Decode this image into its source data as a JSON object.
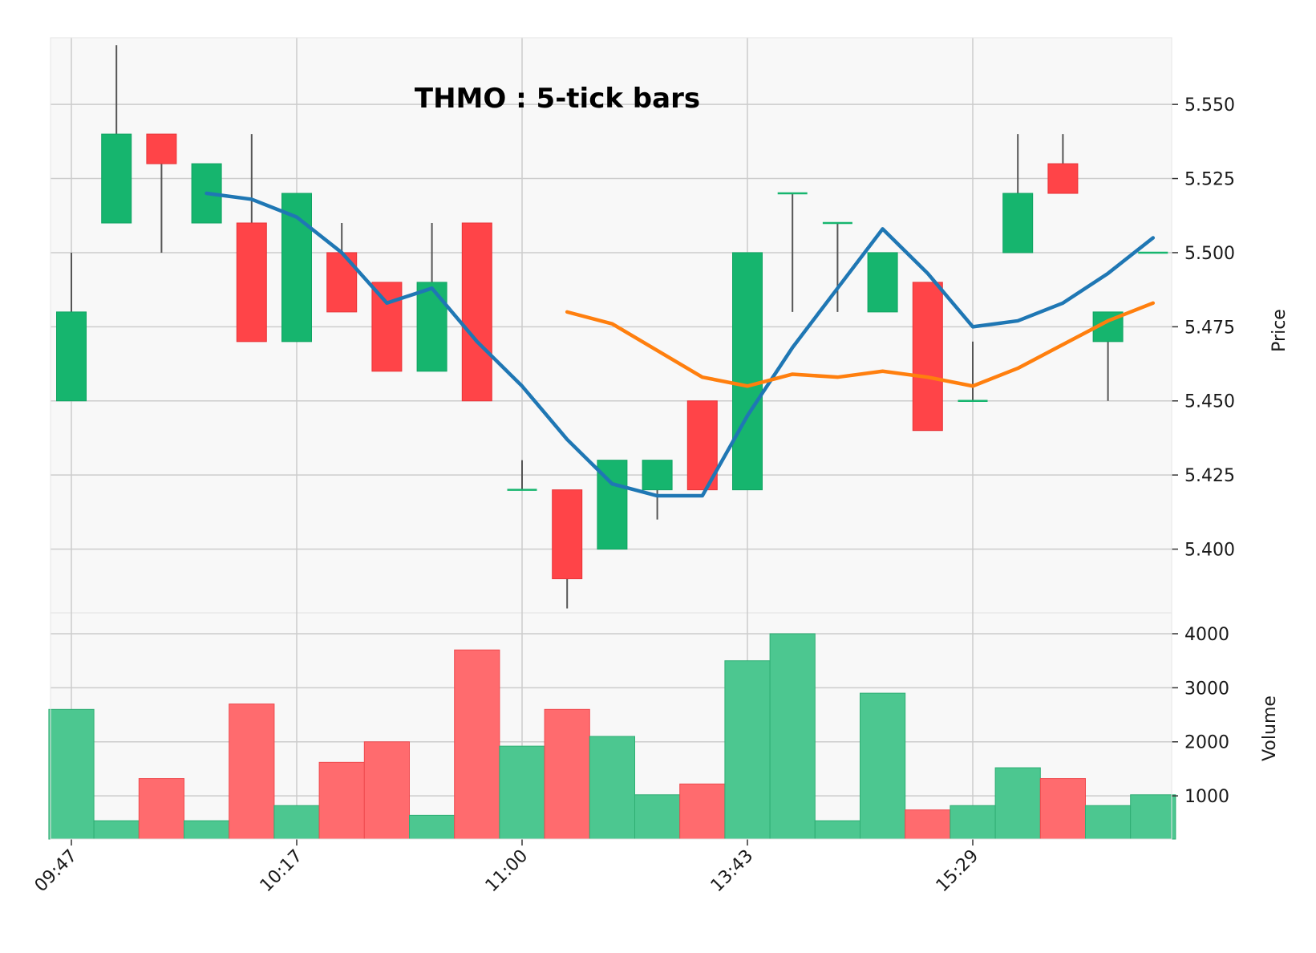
{
  "chart_data": {
    "type": "candlestick",
    "title": "THMO : 5-tick bars",
    "price_axis_label": "Price",
    "volume_axis_label": "Volume",
    "x_tick_labels": [
      {
        "index": 0,
        "label": "09:47"
      },
      {
        "index": 5,
        "label": "10:17"
      },
      {
        "index": 10,
        "label": "11:00"
      },
      {
        "index": 15,
        "label": "13:43"
      },
      {
        "index": 20,
        "label": "15:29"
      }
    ],
    "price_ticks": [
      "5.400",
      "5.425",
      "5.450",
      "5.475",
      "5.500",
      "5.525",
      "5.550"
    ],
    "price_tick_values": [
      5.4,
      5.425,
      5.45,
      5.475,
      5.5,
      5.525,
      5.55
    ],
    "volume_ticks": [
      "1000",
      "2000",
      "3000",
      "4000"
    ],
    "volume_tick_values": [
      1000,
      2000,
      3000,
      4000
    ],
    "price_range": [
      5.3785,
      5.5725
    ],
    "volume_range": [
      200,
      4000
    ],
    "candles": [
      {
        "open": 5.45,
        "high": 5.5,
        "low": 5.45,
        "close": 5.48,
        "volume": 2600
      },
      {
        "open": 5.51,
        "high": 5.57,
        "low": 5.51,
        "close": 5.54,
        "volume": 540
      },
      {
        "open": 5.54,
        "high": 5.54,
        "low": 5.5,
        "close": 5.53,
        "volume": 1320
      },
      {
        "open": 5.51,
        "high": 5.53,
        "low": 5.51,
        "close": 5.53,
        "volume": 540
      },
      {
        "open": 5.51,
        "high": 5.54,
        "low": 5.47,
        "close": 5.47,
        "volume": 2700
      },
      {
        "open": 5.47,
        "high": 5.52,
        "low": 5.47,
        "close": 5.52,
        "volume": 820
      },
      {
        "open": 5.5,
        "high": 5.51,
        "low": 5.48,
        "close": 5.48,
        "volume": 1620
      },
      {
        "open": 5.49,
        "high": 5.49,
        "low": 5.46,
        "close": 5.46,
        "volume": 2000
      },
      {
        "open": 5.46,
        "high": 5.51,
        "low": 5.46,
        "close": 5.49,
        "volume": 640
      },
      {
        "open": 5.51,
        "high": 5.51,
        "low": 5.45,
        "close": 5.45,
        "volume": 3700
      },
      {
        "open": 5.42,
        "high": 5.43,
        "low": 5.42,
        "close": 5.42,
        "volume": 1920
      },
      {
        "open": 5.42,
        "high": 5.42,
        "low": 5.38,
        "close": 5.39,
        "volume": 2600
      },
      {
        "open": 5.4,
        "high": 5.43,
        "low": 5.4,
        "close": 5.43,
        "volume": 2100
      },
      {
        "open": 5.42,
        "high": 5.43,
        "low": 5.41,
        "close": 5.43,
        "volume": 1020
      },
      {
        "open": 5.45,
        "high": 5.45,
        "low": 5.42,
        "close": 5.42,
        "volume": 1220
      },
      {
        "open": 5.42,
        "high": 5.5,
        "low": 5.42,
        "close": 5.5,
        "volume": 3500
      },
      {
        "open": 5.52,
        "high": 5.52,
        "low": 5.48,
        "close": 5.52,
        "volume": 4000
      },
      {
        "open": 5.51,
        "high": 5.51,
        "low": 5.48,
        "close": 5.51,
        "volume": 540
      },
      {
        "open": 5.48,
        "high": 5.5,
        "low": 5.48,
        "close": 5.5,
        "volume": 2900
      },
      {
        "open": 5.49,
        "high": 5.49,
        "low": 5.44,
        "close": 5.44,
        "volume": 740
      },
      {
        "open": 5.45,
        "high": 5.47,
        "low": 5.45,
        "close": 5.45,
        "volume": 820
      },
      {
        "open": 5.5,
        "high": 5.54,
        "low": 5.5,
        "close": 5.52,
        "volume": 1520
      },
      {
        "open": 5.53,
        "high": 5.54,
        "low": 5.52,
        "close": 5.52,
        "volume": 1320
      },
      {
        "open": 5.47,
        "high": 5.48,
        "low": 5.45,
        "close": 5.48,
        "volume": 820
      },
      {
        "open": 5.5,
        "high": 5.5,
        "low": 5.5,
        "close": 5.5,
        "volume": 1020
      }
    ],
    "moving_averages": [
      {
        "color": "#1f77b4",
        "start_index": 3,
        "values": [
          5.52,
          5.518,
          5.512,
          5.5,
          5.483,
          5.488,
          5.47,
          5.455,
          5.437,
          5.422,
          5.418,
          5.418,
          5.445,
          5.468,
          5.488,
          5.508,
          5.493,
          5.475,
          5.477,
          5.483,
          5.493,
          5.505
        ]
      },
      {
        "color": "#ff7f0e",
        "start_index": 11,
        "values": [
          5.48,
          5.476,
          5.467,
          5.458,
          5.455,
          5.459,
          5.458,
          5.46,
          5.458,
          5.455,
          5.461,
          5.469,
          5.477,
          5.483
        ]
      }
    ],
    "colors": {
      "up": "#16b56e",
      "down": "#ff4448",
      "up_volume": "#4cc790",
      "down_volume": "#ff6b6e",
      "wick": "#555555",
      "panel_bg": "#f8f8f8",
      "grid": "#cccccc"
    },
    "grid": true
  }
}
